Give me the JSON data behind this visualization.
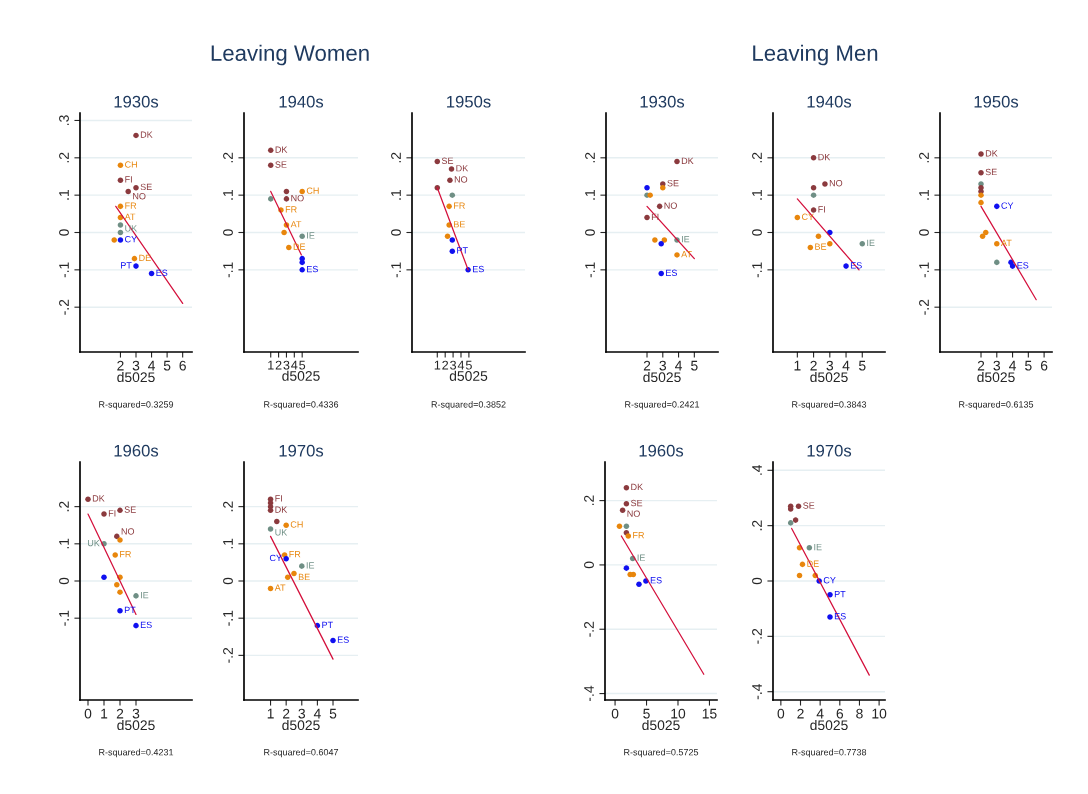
{
  "chart_data": [
    {
      "type": "other",
      "title": "Leaving Women"
    },
    {
      "type": "scatter",
      "title": "1930s",
      "xlabel": "d5025",
      "xlim": [
        -0.6,
        6.6
      ],
      "xticks": [
        2,
        3,
        4,
        5,
        6
      ],
      "ylim": [
        -0.32,
        0.32
      ],
      "yticks": [
        {
          "value": -0.2,
          "label": "-.2"
        },
        {
          "value": -0.1,
          "label": "-.1"
        },
        0,
        {
          "value": 0.1,
          "label": ".1"
        },
        {
          "value": 0.2,
          "label": ".2"
        },
        {
          "value": 0.3,
          "label": ".3"
        }
      ],
      "grid": "y",
      "marker": "circle",
      "line_style": "solid",
      "series": [
        {
          "x": [
            3,
            2,
            2,
            3,
            2.5,
            2,
            2,
            2,
            2,
            1.6,
            2,
            2.9,
            3,
            4
          ],
          "values": [
            0.26,
            0.18,
            0.14,
            0.12,
            0.11,
            0.07,
            0.04,
            0.02,
            0.0,
            -0.02,
            -0.02,
            -0.07,
            -0.09,
            -0.11
          ],
          "colors": [
            "#8b3a3e",
            "#e8860c",
            "#8b3a3e",
            "#8b3a3e",
            "#8b3a3e",
            "#e8860c",
            "#e8860c",
            "#6f8f85",
            "#6f8f85",
            "#e8860c",
            "#1010f0",
            "#e8860c",
            "#1010f0",
            "#1010f0"
          ]
        },
        {
          "type": "line",
          "color": "#d4103c",
          "marker": "none",
          "x": [
            1.7,
            6
          ],
          "values": [
            0.07,
            -0.19
          ]
        }
      ],
      "annotations": [
        {
          "text": "DK",
          "x": 3,
          "y": 0.26
        },
        {
          "text": "CH",
          "x": 2,
          "y": 0.18
        },
        {
          "text": "FI",
          "x": 2,
          "y": 0.14
        },
        {
          "text": "SE",
          "x": 3,
          "y": 0.12
        },
        {
          "text": "NO",
          "x": 2.5,
          "y": 0.11
        },
        {
          "text": "FR",
          "x": 2,
          "y": 0.07
        },
        {
          "text": "AT",
          "x": 2,
          "y": 0.04
        },
        {
          "text": "UK",
          "x": 2,
          "y": 0.02
        },
        {
          "text": "CY",
          "x": 2,
          "y": -0.02
        },
        {
          "text": "DE",
          "x": 2.9,
          "y": -0.07
        },
        {
          "text": "PT",
          "x": 3,
          "y": -0.09
        },
        {
          "text": "ES",
          "x": 4,
          "y": -0.11
        },
        "R-squared=0.3259"
      ]
    },
    {
      "type": "scatter",
      "title": "1940s",
      "xlabel": "d5025",
      "xlim": [
        -2.4,
        12.1
      ],
      "xticks": [
        1,
        2,
        3,
        4,
        5
      ],
      "ylim": [
        -0.32,
        0.32
      ],
      "yticks": [
        {
          "value": -0.1,
          "label": "-.1"
        },
        0,
        {
          "value": 0.1,
          "label": ".1"
        },
        {
          "value": 0.2,
          "label": ".2"
        }
      ],
      "grid": "y",
      "marker": "circle",
      "line_style": "solid",
      "series": [
        {
          "x": [
            1,
            1,
            3,
            5,
            1,
            3,
            2.3,
            3,
            2.7,
            5,
            3.3,
            5,
            5,
            5
          ],
          "values": [
            0.22,
            0.18,
            0.11,
            0.11,
            0.09,
            0.09,
            0.06,
            0.02,
            0.0,
            -0.01,
            -0.04,
            -0.07,
            -0.08,
            -0.1
          ],
          "colors": [
            "#8b3a3e",
            "#8b3a3e",
            "#8b3a3e",
            "#e8860c",
            "#6f8f85",
            "#8b3a3e",
            "#e8860c",
            "#e8860c",
            "#e8860c",
            "#6f8f85",
            "#e8860c",
            "#1010f0",
            "#1010f0",
            "#1010f0"
          ]
        },
        {
          "type": "line",
          "color": "#d4103c",
          "marker": "none",
          "x": [
            1,
            4.9
          ],
          "values": [
            0.11,
            -0.06
          ]
        }
      ],
      "annotations": [
        {
          "text": "DK",
          "x": 1,
          "y": 0.22
        },
        {
          "text": "SE",
          "x": 1,
          "y": 0.18
        },
        {
          "text": "CH",
          "x": 5,
          "y": 0.11
        },
        {
          "text": "NO",
          "x": 3,
          "y": 0.09
        },
        {
          "text": "FR",
          "x": 2.3,
          "y": 0.06
        },
        {
          "text": "AT",
          "x": 3,
          "y": 0.02
        },
        {
          "text": "IE",
          "x": 5,
          "y": -0.01
        },
        {
          "text": "DE",
          "x": 3.3,
          "y": -0.04
        },
        {
          "text": "ES",
          "x": 5,
          "y": -0.1
        },
        "R-squared=0.4336"
      ]
    },
    {
      "type": "scatter",
      "title": "1950s",
      "xlabel": "d5025",
      "xlim": [
        -2.2,
        12.1
      ],
      "xticks": [
        1,
        2,
        3,
        4,
        5
      ],
      "ylim": [
        -0.32,
        0.32
      ],
      "yticks": [
        {
          "value": -0.1,
          "label": "-.1"
        },
        0,
        {
          "value": 0.1,
          "label": ".1"
        },
        {
          "value": 0.2,
          "label": ".2"
        }
      ],
      "grid": "y",
      "marker": "circle",
      "line_style": "solid",
      "series": [
        {
          "x": [
            1,
            2.8,
            2.6,
            1,
            2.9,
            2.5,
            2.5,
            2.3,
            2.9,
            2.9,
            4.9
          ],
          "values": [
            0.19,
            0.17,
            0.14,
            0.12,
            0.1,
            0.07,
            0.02,
            -0.01,
            -0.02,
            -0.05,
            -0.1
          ],
          "colors": [
            "#8b3a3e",
            "#8b3a3e",
            "#8b3a3e",
            "#8b3a3e",
            "#6f8f85",
            "#e8860c",
            "#e8860c",
            "#e8860c",
            "#1010f0",
            "#1010f0",
            "#1010f0"
          ]
        },
        {
          "type": "line",
          "color": "#d4103c",
          "marker": "none",
          "x": [
            1,
            4.9
          ],
          "values": [
            0.12,
            -0.1
          ]
        }
      ],
      "annotations": [
        {
          "text": "SE",
          "x": 1,
          "y": 0.19
        },
        {
          "text": "DK",
          "x": 2.8,
          "y": 0.17
        },
        {
          "text": "NO",
          "x": 2.6,
          "y": 0.14
        },
        {
          "text": "FR",
          "x": 2.5,
          "y": 0.07
        },
        {
          "text": "BE",
          "x": 2.5,
          "y": 0.02
        },
        {
          "text": "PT",
          "x": 2.9,
          "y": -0.05
        },
        {
          "text": "ES",
          "x": 4.9,
          "y": -0.1
        },
        "R-squared=0.3852"
      ]
    },
    {
      "type": "scatter",
      "title": "1960s",
      "xlabel": "d5025",
      "xlim": [
        -0.5,
        6.5
      ],
      "xticks": [
        0,
        1,
        2,
        3
      ],
      "ylim": [
        -0.32,
        0.32
      ],
      "yticks": [
        {
          "value": -0.1,
          "label": "-.1"
        },
        0,
        {
          "value": 0.1,
          "label": ".1"
        },
        {
          "value": 0.2,
          "label": ".2"
        }
      ],
      "grid": "y",
      "marker": "circle",
      "line_style": "solid",
      "series": [
        {
          "x": [
            0,
            2,
            1,
            1.8,
            2,
            1,
            1.7,
            1,
            2,
            1.8,
            2,
            3,
            2,
            3
          ],
          "values": [
            0.22,
            0.19,
            0.18,
            0.12,
            0.11,
            0.1,
            0.07,
            0.01,
            0.01,
            -0.01,
            -0.03,
            -0.04,
            -0.08,
            -0.12
          ],
          "colors": [
            "#8b3a3e",
            "#8b3a3e",
            "#8b3a3e",
            "#8b3a3e",
            "#e8860c",
            "#6f8f85",
            "#e8860c",
            "#1010f0",
            "#e8860c",
            "#e8860c",
            "#e8860c",
            "#6f8f85",
            "#1010f0",
            "#1010f0"
          ]
        },
        {
          "type": "line",
          "color": "#d4103c",
          "marker": "none",
          "x": [
            0,
            3
          ],
          "values": [
            0.18,
            -0.09
          ]
        }
      ],
      "annotations": [
        {
          "text": "DK",
          "x": 0,
          "y": 0.22
        },
        {
          "text": "SE",
          "x": 2,
          "y": 0.19
        },
        {
          "text": "FI",
          "x": 1,
          "y": 0.18
        },
        {
          "text": "NO",
          "x": 1.8,
          "y": 0.12
        },
        {
          "text": "UK",
          "x": 1,
          "y": 0.1
        },
        {
          "text": "FR",
          "x": 1.7,
          "y": 0.07
        },
        {
          "text": "IE",
          "x": 3,
          "y": -0.04
        },
        {
          "text": "PT",
          "x": 2,
          "y": -0.08
        },
        {
          "text": "ES",
          "x": 3,
          "y": -0.12
        },
        "R-squared=0.4231"
      ]
    },
    {
      "type": "scatter",
      "title": "1970s",
      "xlabel": "d5025",
      "xlim": [
        -0.7,
        6.6
      ],
      "xticks": [
        1,
        2,
        3,
        4,
        5
      ],
      "ylim": [
        -0.32,
        0.32
      ],
      "yticks": [
        {
          "value": -0.2,
          "label": "-.2"
        },
        {
          "value": -0.1,
          "label": "-.1"
        },
        0,
        {
          "value": 0.1,
          "label": ".1"
        },
        {
          "value": 0.2,
          "label": ".2"
        }
      ],
      "grid": "y",
      "marker": "circle",
      "line_style": "solid",
      "series": [
        {
          "x": [
            1,
            1,
            1,
            1,
            1.4,
            2,
            1,
            1.9,
            2,
            3,
            2.1,
            2.5,
            1,
            4,
            5
          ],
          "values": [
            0.22,
            0.21,
            0.2,
            0.19,
            0.16,
            0.15,
            0.14,
            0.07,
            0.06,
            0.04,
            0.01,
            0.02,
            -0.02,
            -0.12,
            -0.16
          ],
          "colors": [
            "#8b3a3e",
            "#8b3a3e",
            "#8b3a3e",
            "#8b3a3e",
            "#8b3a3e",
            "#e8860c",
            "#6f8f85",
            "#e8860c",
            "#1010f0",
            "#6f8f85",
            "#e8860c",
            "#e8860c",
            "#e8860c",
            "#1010f0",
            "#1010f0"
          ]
        },
        {
          "type": "line",
          "color": "#d4103c",
          "marker": "none",
          "x": [
            1,
            5
          ],
          "values": [
            0.12,
            -0.21
          ]
        }
      ],
      "annotations": [
        {
          "text": "FI",
          "x": 1,
          "y": 0.22
        },
        {
          "text": "DK",
          "x": 1,
          "y": 0.19
        },
        {
          "text": "CH",
          "x": 2,
          "y": 0.15
        },
        {
          "text": "UK",
          "x": 1,
          "y": 0.14
        },
        {
          "text": "FR",
          "x": 1.9,
          "y": 0.07
        },
        {
          "text": "CY",
          "x": 2,
          "y": 0.06
        },
        {
          "text": "IE",
          "x": 3,
          "y": 0.04
        },
        {
          "text": "BE",
          "x": 2.5,
          "y": 0.02
        },
        {
          "text": "AT",
          "x": 1,
          "y": -0.02
        },
        {
          "text": "PT",
          "x": 4,
          "y": -0.12
        },
        {
          "text": "ES",
          "x": 5,
          "y": -0.16
        },
        "R-squared=0.6047"
      ]
    },
    {
      "type": "other",
      "title": "Leaving Men"
    },
    {
      "type": "scatter",
      "title": "1930s",
      "xlabel": "d5025",
      "xlim": [
        -0.6,
        6.5
      ],
      "xticks": [
        2,
        3,
        4,
        5
      ],
      "ylim": [
        -0.32,
        0.32
      ],
      "yticks": [
        {
          "value": -0.1,
          "label": "-.1"
        },
        0,
        {
          "value": 0.1,
          "label": ".1"
        },
        {
          "value": 0.2,
          "label": ".2"
        }
      ],
      "grid": "y",
      "marker": "circle",
      "line_style": "solid",
      "series": [
        {
          "x": [
            3.9,
            2,
            3,
            3,
            2,
            2.2,
            2.8,
            2,
            2.5,
            3.1,
            3.9,
            2.9,
            3.9,
            2.9
          ],
          "values": [
            0.19,
            0.12,
            0.13,
            0.12,
            0.1,
            0.1,
            0.07,
            0.04,
            -0.02,
            -0.02,
            -0.02,
            -0.03,
            -0.06,
            -0.11
          ],
          "colors": [
            "#8b3a3e",
            "#1010f0",
            "#8b3a3e",
            "#e8860c",
            "#6f8f85",
            "#e8860c",
            "#8b3a3e",
            "#8b3a3e",
            "#e8860c",
            "#e8860c",
            "#6f8f85",
            "#1010f0",
            "#e8860c",
            "#1010f0"
          ]
        },
        {
          "type": "line",
          "color": "#d4103c",
          "marker": "none",
          "x": [
            2,
            5
          ],
          "values": [
            0.07,
            -0.07
          ]
        }
      ],
      "annotations": [
        {
          "text": "DK",
          "x": 3.9,
          "y": 0.19
        },
        {
          "text": "SE",
          "x": 3,
          "y": 0.13
        },
        {
          "text": "NO",
          "x": 2.8,
          "y": 0.07
        },
        {
          "text": "FI",
          "x": 2,
          "y": 0.04
        },
        {
          "text": "IE",
          "x": 3.9,
          "y": -0.02
        },
        {
          "text": "AT",
          "x": 3.9,
          "y": -0.06
        },
        {
          "text": "ES",
          "x": 2.9,
          "y": -0.11
        },
        "R-squared=0.2421"
      ]
    },
    {
      "type": "scatter",
      "title": "1940s",
      "xlabel": "d5025",
      "xlim": [
        -0.5,
        6.4
      ],
      "xticks": [
        1,
        2,
        3,
        4,
        5
      ],
      "ylim": [
        -0.32,
        0.32
      ],
      "yticks": [
        {
          "value": -0.1,
          "label": "-.1"
        },
        0,
        {
          "value": 0.1,
          "label": ".1"
        },
        {
          "value": 0.2,
          "label": ".2"
        }
      ],
      "grid": "y",
      "marker": "circle",
      "line_style": "solid",
      "series": [
        {
          "x": [
            2,
            2.7,
            2,
            2,
            2,
            1,
            3,
            2.3,
            3,
            1.8,
            5,
            4
          ],
          "values": [
            0.2,
            0.13,
            0.12,
            0.1,
            0.06,
            0.04,
            0.0,
            -0.01,
            -0.03,
            -0.04,
            -0.03,
            -0.09
          ],
          "colors": [
            "#8b3a3e",
            "#8b3a3e",
            "#8b3a3e",
            "#6f8f85",
            "#8b3a3e",
            "#e8860c",
            "#1010f0",
            "#e8860c",
            "#e8860c",
            "#e8860c",
            "#6f8f85",
            "#1010f0"
          ]
        },
        {
          "type": "line",
          "color": "#d4103c",
          "marker": "none",
          "x": [
            1,
            4.8
          ],
          "values": [
            0.09,
            -0.1
          ]
        }
      ],
      "annotations": [
        {
          "text": "DK",
          "x": 2,
          "y": 0.2
        },
        {
          "text": "NO",
          "x": 2.7,
          "y": 0.13
        },
        {
          "text": "FI",
          "x": 2,
          "y": 0.06
        },
        {
          "text": "CY",
          "x": 1,
          "y": 0.04
        },
        {
          "text": "BE",
          "x": 1.8,
          "y": -0.04
        },
        {
          "text": "IE",
          "x": 5,
          "y": -0.03
        },
        {
          "text": "ES",
          "x": 4,
          "y": -0.09
        },
        "R-squared=0.3843"
      ]
    },
    {
      "type": "scatter",
      "title": "1950s",
      "xlabel": "d5025",
      "xlim": [
        -0.6,
        6.5
      ],
      "xticks": [
        2,
        3,
        4,
        5,
        6
      ],
      "ylim": [
        -0.32,
        0.32
      ],
      "yticks": [
        {
          "value": -0.2,
          "label": "-.2"
        },
        {
          "value": -0.1,
          "label": "-.1"
        },
        0,
        {
          "value": 0.1,
          "label": ".1"
        },
        {
          "value": 0.2,
          "label": ".2"
        }
      ],
      "grid": "y",
      "marker": "circle",
      "line_style": "solid",
      "series": [
        {
          "x": [
            2,
            2,
            2,
            2,
            2,
            2,
            2,
            3,
            2.1,
            2.3,
            3,
            3,
            3.9,
            4
          ],
          "values": [
            0.21,
            0.16,
            0.13,
            0.12,
            0.11,
            0.1,
            0.08,
            0.07,
            -0.01,
            0.0,
            -0.03,
            -0.08,
            -0.08,
            -0.09
          ],
          "colors": [
            "#8b3a3e",
            "#8b3a3e",
            "#6f8f85",
            "#8b3a3e",
            "#8b3a3e",
            "#e8860c",
            "#e8860c",
            "#1010f0",
            "#e8860c",
            "#e8860c",
            "#e8860c",
            "#6f8f85",
            "#1010f0",
            "#1010f0"
          ]
        },
        {
          "type": "line",
          "color": "#d4103c",
          "marker": "none",
          "x": [
            2,
            5.5
          ],
          "values": [
            0.07,
            -0.18
          ]
        }
      ],
      "annotations": [
        {
          "text": "DK",
          "x": 2,
          "y": 0.21
        },
        {
          "text": "SE",
          "x": 2,
          "y": 0.16
        },
        {
          "text": "CY",
          "x": 3,
          "y": 0.07
        },
        {
          "text": "AT",
          "x": 3,
          "y": -0.03
        },
        {
          "text": "ES",
          "x": 4,
          "y": -0.09
        },
        "R-squared=0.6135"
      ]
    },
    {
      "type": "scatter",
      "title": "1960s",
      "xlabel": "d5025",
      "xlim": [
        -1.6,
        16.2
      ],
      "xticks": [
        0,
        5,
        10,
        15
      ],
      "ylim": [
        -0.42,
        0.32
      ],
      "yticks": [
        {
          "value": -0.4,
          "label": "-.4"
        },
        {
          "value": -0.2,
          "label": "-.2"
        },
        0,
        {
          "value": 0.2,
          "label": ".2"
        }
      ],
      "grid": "y",
      "marker": "circle",
      "line_style": "solid",
      "series": [
        {
          "x": [
            1.8,
            1.8,
            1.2,
            0.7,
            1.8,
            1.8,
            2.1,
            2.8,
            1.8,
            2.4,
            2.9,
            4.9,
            3.8
          ],
          "values": [
            0.24,
            0.19,
            0.17,
            0.12,
            0.12,
            0.1,
            0.09,
            0.02,
            -0.01,
            -0.03,
            -0.03,
            -0.05,
            -0.06
          ],
          "colors": [
            "#8b3a3e",
            "#8b3a3e",
            "#8b3a3e",
            "#e8860c",
            "#6f8f85",
            "#8b3a3e",
            "#e8860c",
            "#6f8f85",
            "#1010f0",
            "#e8860c",
            "#e8860c",
            "#1010f0",
            "#1010f0"
          ]
        },
        {
          "type": "line",
          "color": "#d4103c",
          "marker": "none",
          "x": [
            1,
            14.1
          ],
          "values": [
            0.09,
            -0.34
          ]
        }
      ],
      "annotations": [
        {
          "text": "DK",
          "x": 1.8,
          "y": 0.24
        },
        {
          "text": "SE",
          "x": 1.8,
          "y": 0.19
        },
        {
          "text": "NO",
          "x": 1.2,
          "y": 0.17
        },
        {
          "text": "FR",
          "x": 2.1,
          "y": 0.09
        },
        {
          "text": "IE",
          "x": 2.8,
          "y": 0.02
        },
        {
          "text": "ES",
          "x": 4.9,
          "y": -0.05
        },
        "R-squared=0.5725"
      ]
    },
    {
      "type": "scatter",
      "title": "1970s",
      "xlabel": "d5025",
      "xlim": [
        -0.8,
        10.6
      ],
      "xticks": [
        0,
        2,
        4,
        6,
        8,
        10
      ],
      "ylim": [
        -0.43,
        0.43
      ],
      "yticks": [
        {
          "value": -0.4,
          "label": "-.4"
        },
        {
          "value": -0.2,
          "label": "-.2"
        },
        0,
        {
          "value": 0.2,
          "label": ".2"
        },
        {
          "value": 0.4,
          "label": ".4"
        }
      ],
      "grid": "y",
      "marker": "circle",
      "line_style": "solid",
      "series": [
        {
          "x": [
            1,
            1,
            1.8,
            1.5,
            1,
            1.9,
            2.9,
            2.2,
            1.9,
            3.5,
            3.9,
            5,
            5
          ],
          "values": [
            0.27,
            0.26,
            0.27,
            0.22,
            0.21,
            0.12,
            0.12,
            0.06,
            0.02,
            0.02,
            0.0,
            -0.05,
            -0.13
          ],
          "colors": [
            "#8b3a3e",
            "#8b3a3e",
            "#8b3a3e",
            "#8b3a3e",
            "#6f8f85",
            "#e8860c",
            "#6f8f85",
            "#e8860c",
            "#e8860c",
            "#e8860c",
            "#1010f0",
            "#1010f0",
            "#1010f0"
          ]
        },
        {
          "type": "line",
          "color": "#d4103c",
          "marker": "none",
          "x": [
            1.1,
            9
          ],
          "values": [
            0.19,
            -0.34
          ]
        }
      ],
      "annotations": [
        {
          "text": "SE",
          "x": 1.8,
          "y": 0.27
        },
        {
          "text": "IE",
          "x": 2.9,
          "y": 0.12
        },
        {
          "text": "DE",
          "x": 2.2,
          "y": 0.06
        },
        {
          "text": "CY",
          "x": 3.9,
          "y": 0.0
        },
        {
          "text": "PT",
          "x": 5,
          "y": -0.05
        },
        {
          "text": "ES",
          "x": 5,
          "y": -0.13
        },
        "R-squared=0.7738"
      ]
    }
  ]
}
